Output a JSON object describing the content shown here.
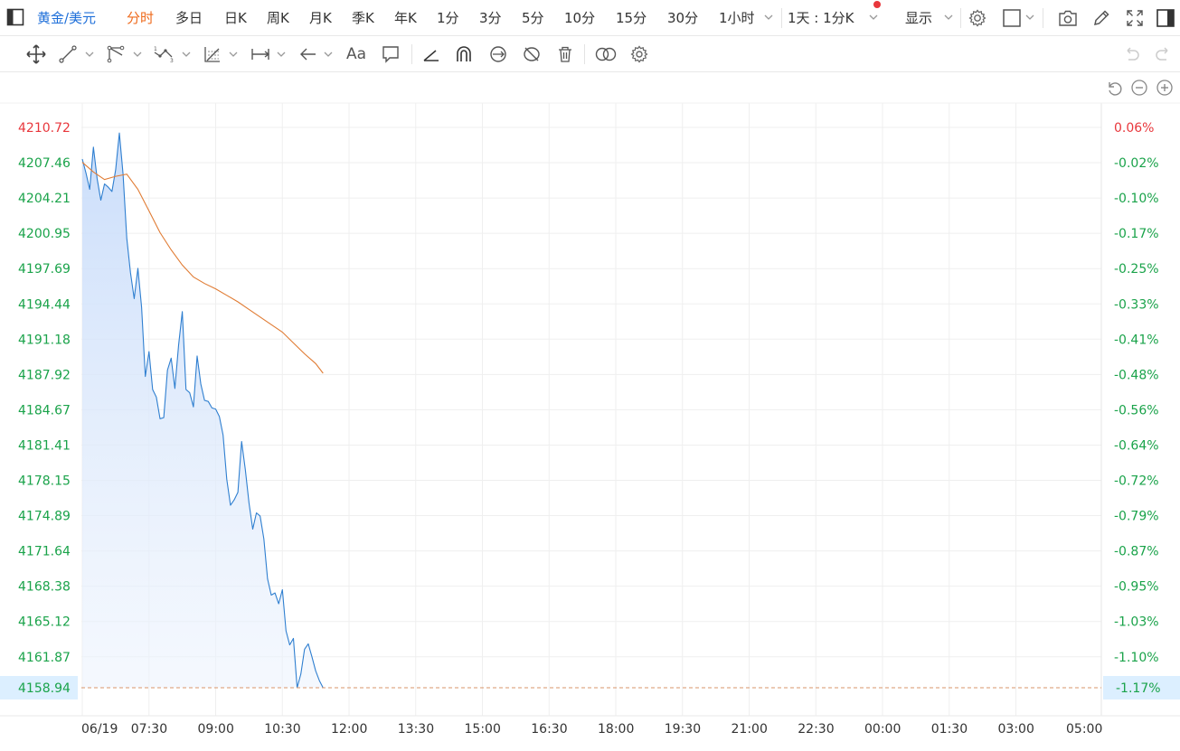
{
  "toolbar": {
    "symbol": "黄金/美元",
    "periods": [
      "分时",
      "多日",
      "日K",
      "周K",
      "月K",
      "季K",
      "年K",
      "1分",
      "3分",
      "5分",
      "10分",
      "15分",
      "30分"
    ],
    "active_period": "分时",
    "hour_select": "1小时",
    "range_select": "1天 : 1分K",
    "display_select": "显示"
  },
  "drawing_tools": {
    "text_tool_label": "Aa"
  },
  "chart_data": {
    "type": "line",
    "title": "",
    "y_left_ticks": [
      "4210.72",
      "4207.46",
      "4204.21",
      "4200.95",
      "4197.69",
      "4194.44",
      "4191.18",
      "4187.92",
      "4184.67",
      "4181.41",
      "4178.15",
      "4174.89",
      "4171.64",
      "4168.38",
      "4165.12",
      "4161.87"
    ],
    "y_right_ticks": [
      "0.06%",
      "-0.02%",
      "-0.10%",
      "-0.17%",
      "-0.25%",
      "-0.33%",
      "-0.41%",
      "-0.48%",
      "-0.56%",
      "-0.64%",
      "-0.72%",
      "-0.79%",
      "-0.87%",
      "-0.95%",
      "-1.03%",
      "-1.10%"
    ],
    "x_ticks": [
      "06/19",
      "07:30",
      "09:00",
      "10:30",
      "12:00",
      "13:30",
      "15:00",
      "16:30",
      "18:00",
      "19:30",
      "21:00",
      "22:30",
      "00:00",
      "01:30",
      "03:00",
      "05:00"
    ],
    "current_price": "4158.94",
    "current_change": "-1.17%",
    "ylim": [
      4158.94,
      4210.72
    ],
    "colors": {
      "price": "#2f7fd0",
      "average": "#e07b33",
      "up": "#e8373c",
      "down": "#1aa34a",
      "current_bg": "#dcefff"
    },
    "series": [
      {
        "name": "",
        "x": [
          "06:00",
          "06:05",
          "06:10",
          "06:15",
          "06:20",
          "06:25",
          "06:30",
          "06:35",
          "06:40",
          "06:45",
          "06:50",
          "06:55",
          "07:00",
          "07:05",
          "07:10",
          "07:15",
          "07:20",
          "07:25",
          "07:30",
          "07:35",
          "07:40",
          "07:45",
          "07:50",
          "07:55",
          "08:00",
          "08:05",
          "08:10",
          "08:15",
          "08:20",
          "08:25",
          "08:30",
          "08:35",
          "08:40",
          "08:45",
          "08:50",
          "08:55",
          "09:00",
          "09:05",
          "09:10",
          "09:15",
          "09:20",
          "09:25",
          "09:30",
          "09:35",
          "09:40",
          "09:45",
          "09:50",
          "09:55",
          "10:00",
          "10:05",
          "10:10",
          "10:15",
          "10:20",
          "10:25",
          "10:30",
          "10:35",
          "10:40",
          "10:45",
          "10:50",
          "10:55",
          "11:00",
          "11:05",
          "11:10",
          "11:15",
          "11:20",
          "11:25"
        ],
        "values": [
          4207.8,
          4206.5,
          4205.0,
          4208.9,
          4206.0,
          4204.0,
          4205.5,
          4205.2,
          4204.8,
          4206.8,
          4210.2,
          4206.4,
          4200.5,
          4197.3,
          4194.9,
          4197.7,
          4194.1,
          4187.7,
          4190.0,
          4186.5,
          4185.8,
          4183.8,
          4183.9,
          4188.3,
          4189.4,
          4186.6,
          4190.6,
          4193.7,
          4186.5,
          4186.2,
          4184.9,
          4189.6,
          4187.0,
          4185.5,
          4185.4,
          4184.8,
          4184.7,
          4184.0,
          4182.3,
          4178.2,
          4175.8,
          4176.3,
          4177.0,
          4181.7,
          4179.1,
          4176.0,
          4173.6,
          4175.1,
          4174.8,
          4172.7,
          4169.0,
          4167.5,
          4167.7,
          4166.7,
          4168.0,
          4164.2,
          4162.9,
          4163.5,
          4158.94,
          4160.2,
          4162.5,
          4163.0,
          4161.8,
          4160.5,
          4159.6,
          4158.94
        ]
      },
      {
        "name": "",
        "x": [
          "06:00",
          "06:15",
          "06:30",
          "06:45",
          "07:00",
          "07:15",
          "07:30",
          "07:45",
          "08:00",
          "08:15",
          "08:30",
          "08:45",
          "09:00",
          "09:15",
          "09:30",
          "09:45",
          "10:00",
          "10:15",
          "10:30",
          "10:45",
          "11:00",
          "11:15",
          "11:25"
        ],
        "values": [
          4207.5,
          4206.6,
          4205.9,
          4206.2,
          4206.4,
          4205.0,
          4203.0,
          4201.0,
          4199.4,
          4198.0,
          4196.9,
          4196.3,
          4195.8,
          4195.2,
          4194.6,
          4193.9,
          4193.2,
          4192.5,
          4191.8,
          4190.8,
          4189.8,
          4188.9,
          4188.0
        ]
      }
    ]
  }
}
